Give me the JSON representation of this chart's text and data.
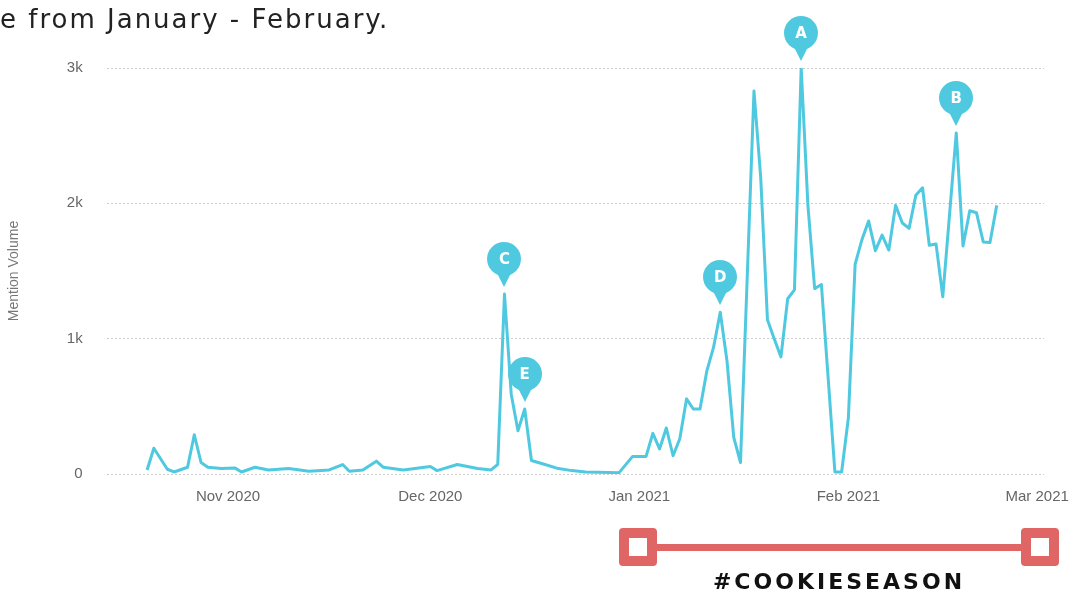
{
  "chart_data": {
    "type": "line",
    "title": "e from January - February.",
    "ylabel": "Mention Volume",
    "grid": "y",
    "legend": false,
    "marker": "none",
    "line_style": "solid",
    "xlim": [
      "2020-10-14",
      "2021-03-02"
    ],
    "xticks": [
      {
        "value": "2020-11-01",
        "label": "Nov 2020"
      },
      {
        "value": "2020-12-01",
        "label": "Dec 2020"
      },
      {
        "value": "2021-01-01",
        "label": "Jan 2021"
      },
      {
        "value": "2021-02-01",
        "label": "Feb 2021"
      },
      {
        "value": "2021-03-01",
        "label": "Mar 2021"
      }
    ],
    "ylim": [
      0,
      3000
    ],
    "yticks": [
      {
        "value": 0,
        "label": "0"
      },
      {
        "value": 1000,
        "label": "1k"
      },
      {
        "value": 2000,
        "label": "2k"
      },
      {
        "value": 3000,
        "label": "3k"
      }
    ],
    "x": [
      "2020-10-20",
      "2020-10-21",
      "2020-10-23",
      "2020-10-24",
      "2020-10-26",
      "2020-10-27",
      "2020-10-28",
      "2020-10-29",
      "2020-10-31",
      "2020-11-02",
      "2020-11-03",
      "2020-11-05",
      "2020-11-07",
      "2020-11-10",
      "2020-11-13",
      "2020-11-16",
      "2020-11-18",
      "2020-11-19",
      "2020-11-21",
      "2020-11-23",
      "2020-11-24",
      "2020-11-27",
      "2020-12-01",
      "2020-12-02",
      "2020-12-05",
      "2020-12-08",
      "2020-12-10",
      "2020-12-11",
      "2020-12-12",
      "2020-12-13",
      "2020-12-14",
      "2020-12-15",
      "2020-12-16",
      "2020-12-18",
      "2020-12-20",
      "2020-12-22",
      "2020-12-24",
      "2020-12-29",
      "2020-12-31",
      "2021-01-02",
      "2021-01-03",
      "2021-01-04",
      "2021-01-05",
      "2021-01-06",
      "2021-01-07",
      "2021-01-08",
      "2021-01-09",
      "2021-01-10",
      "2021-01-11",
      "2021-01-12",
      "2021-01-13",
      "2021-01-14",
      "2021-01-15",
      "2021-01-16",
      "2021-01-18",
      "2021-01-19",
      "2021-01-20",
      "2021-01-21",
      "2021-01-22",
      "2021-01-23",
      "2021-01-24",
      "2021-01-25",
      "2021-01-26",
      "2021-01-27",
      "2021-01-28",
      "2021-01-29",
      "2021-01-30",
      "2021-01-31",
      "2021-02-01",
      "2021-02-02",
      "2021-02-03",
      "2021-02-04",
      "2021-02-05",
      "2021-02-06",
      "2021-02-07",
      "2021-02-08",
      "2021-02-09",
      "2021-02-10",
      "2021-02-11",
      "2021-02-12",
      "2021-02-13",
      "2021-02-14",
      "2021-02-15",
      "2021-02-17",
      "2021-02-18",
      "2021-02-19",
      "2021-02-20",
      "2021-02-21",
      "2021-02-22",
      "2021-02-23"
    ],
    "series": [
      {
        "color": "#4fc9e0",
        "values": [
          30,
          190,
          35,
          15,
          50,
          290,
          85,
          50,
          40,
          45,
          15,
          50,
          30,
          40,
          20,
          30,
          70,
          20,
          30,
          95,
          50,
          30,
          55,
          25,
          70,
          40,
          30,
          70,
          1330,
          590,
          320,
          480,
          100,
          70,
          40,
          25,
          15,
          10,
          130,
          130,
          300,
          185,
          340,
          135,
          260,
          555,
          480,
          480,
          760,
          935,
          1195,
          835,
          270,
          85,
          2830,
          2190,
          1140,
          1000,
          865,
          1295,
          1360,
          3000,
          1985,
          1370,
          1400,
          710,
          15,
          15,
          415,
          1550,
          1730,
          1870,
          1650,
          1765,
          1655,
          1985,
          1855,
          1815,
          2060,
          2115,
          1690,
          1700,
          1310,
          2520,
          1685,
          1945,
          1930,
          1715,
          1710,
          1985
        ]
      }
    ],
    "annotations": [
      {
        "text": "A",
        "x": "2021-01-25",
        "y": 3000
      },
      {
        "text": "B",
        "x": "2021-02-17",
        "y": 2520
      },
      {
        "text": "C",
        "x": "2020-12-12",
        "y": 1330
      },
      {
        "text": "D",
        "x": "2021-01-13",
        "y": 1195
      },
      {
        "text": "E",
        "x": "2020-12-15",
        "y": 480
      },
      "#COOKIESEASON"
    ]
  }
}
